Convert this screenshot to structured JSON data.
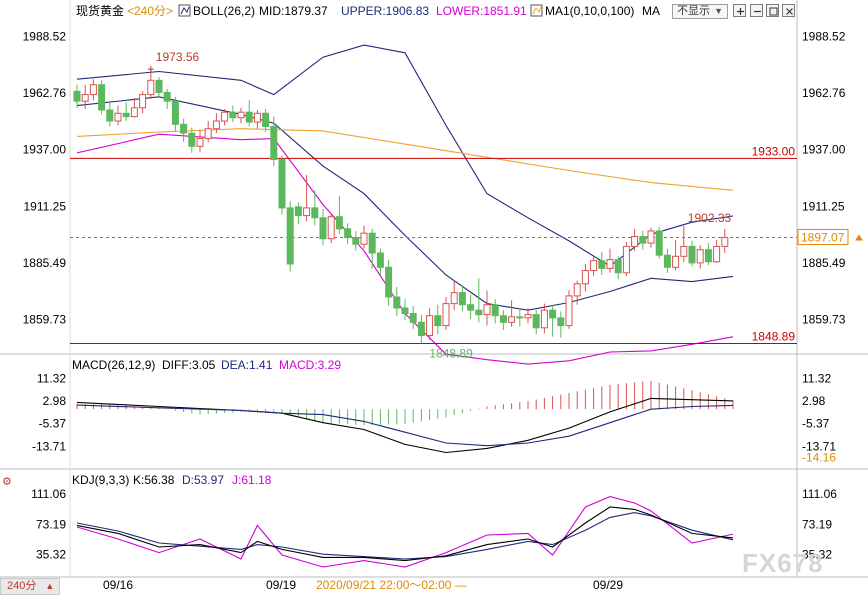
{
  "header": {
    "symbol": "现货黄金",
    "period": "<240分>",
    "boll_label": "BOLL(26,2)",
    "mid": "MID:1879.37",
    "upper": "UPPER:1906.83",
    "lower": "LOWER:1851.91",
    "ma_label": "MA1(0,10,0,100)",
    "ma_name": "MA",
    "toggle_label": "不显示",
    "toggle_caret": "▼"
  },
  "macd_header": {
    "label": "MACD(26,12,9)",
    "diff": "DIFF:3.05",
    "dea": "DEA:1.41",
    "macd": "MACD:3.29"
  },
  "kdj_header": {
    "label": "KDJ(9,3,3)",
    "k": "K:56.38",
    "d": "D:53.97",
    "j": "J:61.18"
  },
  "footer": {
    "period_button": "240分",
    "period_arrow": "▲",
    "dates": [
      "09/16",
      "09/19",
      "09/29"
    ],
    "cursor_range": "2020/09/21 22:00～02:00 —"
  },
  "watermark": "FX678",
  "colors": {
    "up": "#d9534f",
    "down": "#5cb85c",
    "boll": "#1f2a7a",
    "lower": "#d400d4",
    "ma": "#f0a030",
    "hline": "#cc0000",
    "current": "#2a9d8f",
    "diff": "#000000",
    "dea": "#1f2a7a",
    "j": "#d400d4"
  },
  "chart_data": [
    {
      "type": "candlestick",
      "title": "现货黄金 240分",
      "y_ticks_left": [
        "1988.52",
        "1962.76",
        "1937.00",
        "1911.25",
        "1885.49",
        "1859.73"
      ],
      "y_ticks_right": [
        "1988.52",
        "1962.76",
        "1937.00",
        "1911.25",
        "1885.49",
        "1859.73"
      ],
      "ylim": [
        1845,
        1995
      ],
      "x_labels": [
        "09/16",
        "09/19",
        "09/29"
      ],
      "horizontal_lines": [
        1933.0,
        1848.89
      ],
      "horizontal_line_labels": [
        "1933.00",
        "1848.89"
      ],
      "current_price": 1897.07,
      "current_price_label": "1897.07",
      "annotations": {
        "high": "1973.56",
        "low": "1848.89",
        "recent_high": "1902.33"
      },
      "high_value": 1973.56,
      "low_value": 1848.89,
      "recent_high_value": 1902.33,
      "high_index": 9,
      "low_index": 42,
      "recent_high_index": 74,
      "candles": [
        [
          1963.5,
          1959.0,
          1966.5,
          1956.0
        ],
        [
          1959.0,
          1962.0,
          1966.5,
          1955.5
        ],
        [
          1962.0,
          1966.5,
          1969.0,
          1959.5
        ],
        [
          1966.5,
          1955.0,
          1968.5,
          1953.0
        ],
        [
          1955.0,
          1950.0,
          1958.5,
          1947.5
        ],
        [
          1950.0,
          1953.5,
          1957.0,
          1948.0
        ],
        [
          1953.5,
          1952.0,
          1958.5,
          1950.0
        ],
        [
          1952.0,
          1956.0,
          1960.5,
          1951.5
        ],
        [
          1956.0,
          1962.0,
          1963.5,
          1953.5
        ],
        [
          1962.0,
          1968.5,
          1973.56,
          1960.0
        ],
        [
          1968.5,
          1963.0,
          1970.0,
          1961.0
        ],
        [
          1963.0,
          1959.0,
          1964.5,
          1955.5
        ],
        [
          1959.0,
          1948.5,
          1961.0,
          1945.0
        ],
        [
          1948.5,
          1944.5,
          1951.0,
          1940.5
        ],
        [
          1944.5,
          1938.5,
          1947.0,
          1935.5
        ],
        [
          1938.5,
          1942.0,
          1946.0,
          1936.0
        ],
        [
          1942.0,
          1946.5,
          1950.0,
          1940.5
        ],
        [
          1946.5,
          1950.0,
          1953.5,
          1944.5
        ],
        [
          1950.0,
          1954.0,
          1955.5,
          1948.0
        ],
        [
          1954.0,
          1951.5,
          1957.0,
          1949.5
        ],
        [
          1951.5,
          1954.0,
          1956.0,
          1949.0
        ],
        [
          1954.0,
          1949.5,
          1959.5,
          1947.5
        ],
        [
          1949.5,
          1953.5,
          1955.0,
          1946.5
        ],
        [
          1953.5,
          1947.5,
          1955.5,
          1945.0
        ],
        [
          1947.5,
          1932.5,
          1952.0,
          1929.5
        ],
        [
          1932.5,
          1910.5,
          1934.5,
          1907.5
        ],
        [
          1910.5,
          1885.0,
          1913.5,
          1881.5
        ],
        [
          1911.0,
          1907.0,
          1913.0,
          1903.0
        ],
        [
          1907.0,
          1910.5,
          1925.5,
          1904.5
        ],
        [
          1910.5,
          1906.0,
          1918.5,
          1902.5
        ],
        [
          1906.0,
          1896.5,
          1910.0,
          1893.5
        ],
        [
          1896.5,
          1906.5,
          1908.0,
          1894.5
        ],
        [
          1906.5,
          1901.0,
          1916.0,
          1898.5
        ],
        [
          1901.0,
          1897.0,
          1903.5,
          1894.0
        ],
        [
          1897.0,
          1894.0,
          1900.0,
          1891.0
        ],
        [
          1894.0,
          1899.0,
          1902.5,
          1892.0
        ],
        [
          1899.0,
          1890.0,
          1901.0,
          1883.0
        ],
        [
          1890.0,
          1883.5,
          1892.0,
          1880.0
        ],
        [
          1883.5,
          1870.0,
          1887.0,
          1866.0
        ],
        [
          1870.0,
          1865.0,
          1874.5,
          1861.5
        ],
        [
          1865.0,
          1862.5,
          1869.0,
          1859.5
        ],
        [
          1862.5,
          1858.5,
          1866.0,
          1855.5
        ],
        [
          1858.5,
          1852.5,
          1862.0,
          1848.89
        ],
        [
          1852.5,
          1861.5,
          1865.0,
          1850.5
        ],
        [
          1861.5,
          1857.0,
          1866.5,
          1853.0
        ],
        [
          1857.0,
          1867.0,
          1870.0,
          1855.0
        ],
        [
          1867.0,
          1872.0,
          1877.5,
          1864.0
        ],
        [
          1872.0,
          1866.5,
          1875.0,
          1863.5
        ],
        [
          1866.5,
          1864.0,
          1871.0,
          1860.0
        ],
        [
          1864.0,
          1862.0,
          1878.5,
          1858.5
        ],
        [
          1862.0,
          1866.5,
          1873.0,
          1857.0
        ],
        [
          1866.5,
          1861.5,
          1869.0,
          1858.0
        ],
        [
          1861.5,
          1858.5,
          1864.0,
          1855.0
        ],
        [
          1858.5,
          1861.0,
          1868.5,
          1856.5
        ],
        [
          1861.0,
          1860.5,
          1865.0,
          1856.5
        ],
        [
          1860.5,
          1862.0,
          1865.0,
          1858.0
        ],
        [
          1862.0,
          1856.0,
          1864.0,
          1853.0
        ],
        [
          1856.0,
          1864.0,
          1867.0,
          1853.5
        ],
        [
          1864.0,
          1860.5,
          1866.5,
          1852.0
        ],
        [
          1860.5,
          1857.0,
          1863.5,
          1851.5
        ],
        [
          1857.0,
          1870.5,
          1873.0,
          1855.5
        ],
        [
          1870.5,
          1876.0,
          1877.5,
          1866.5
        ],
        [
          1876.0,
          1882.0,
          1885.0,
          1872.5
        ],
        [
          1882.0,
          1886.5,
          1889.0,
          1879.5
        ],
        [
          1886.5,
          1883.0,
          1890.5,
          1880.0
        ],
        [
          1883.0,
          1887.0,
          1892.0,
          1881.0
        ],
        [
          1887.0,
          1881.0,
          1888.5,
          1878.0
        ],
        [
          1881.0,
          1893.0,
          1895.0,
          1879.5
        ],
        [
          1893.0,
          1897.5,
          1901.0,
          1891.0
        ],
        [
          1897.5,
          1894.5,
          1900.0,
          1891.5
        ],
        [
          1894.5,
          1900.0,
          1901.5,
          1892.5
        ],
        [
          1900.0,
          1889.0,
          1902.0,
          1887.5
        ],
        [
          1889.0,
          1883.5,
          1892.0,
          1881.0
        ],
        [
          1883.5,
          1888.5,
          1896.0,
          1882.0
        ],
        [
          1888.5,
          1893.0,
          1902.33,
          1886.0
        ],
        [
          1893.0,
          1885.5,
          1895.5,
          1884.0
        ],
        [
          1885.5,
          1891.5,
          1893.5,
          1883.0
        ],
        [
          1891.5,
          1886.0,
          1894.5,
          1884.5
        ],
        [
          1886.0,
          1893.0,
          1896.0,
          1885.5
        ],
        [
          1893.0,
          1897.07,
          1901.0,
          1890.0
        ]
      ],
      "boll_upper": [
        [
          0,
          1969.0
        ],
        [
          10,
          1972.5
        ],
        [
          20,
          1968.5
        ],
        [
          24,
          1962.0
        ],
        [
          30,
          1979.0
        ],
        [
          35,
          1984.5
        ],
        [
          40,
          1981.0
        ],
        [
          45,
          1948.0
        ],
        [
          50,
          1917.0
        ],
        [
          55,
          1906.0
        ],
        [
          60,
          1895.5
        ],
        [
          65,
          1884.0
        ],
        [
          70,
          1898.5
        ],
        [
          75,
          1904.0
        ],
        [
          80,
          1906.83
        ]
      ],
      "boll_mid": [
        [
          0,
          1957.0
        ],
        [
          10,
          1961.0
        ],
        [
          20,
          1953.0
        ],
        [
          24,
          1949.0
        ],
        [
          30,
          1929.5
        ],
        [
          35,
          1917.0
        ],
        [
          40,
          1898.0
        ],
        [
          45,
          1880.0
        ],
        [
          50,
          1867.0
        ],
        [
          55,
          1864.0
        ],
        [
          60,
          1867.5
        ],
        [
          65,
          1872.5
        ],
        [
          70,
          1878.5
        ],
        [
          75,
          1877.0
        ],
        [
          80,
          1879.37
        ]
      ],
      "boll_lower": [
        [
          0,
          1935.5
        ],
        [
          10,
          1944.0
        ],
        [
          20,
          1941.5
        ],
        [
          24,
          1942.0
        ],
        [
          30,
          1912.0
        ],
        [
          35,
          1891.0
        ],
        [
          40,
          1862.5
        ],
        [
          45,
          1844.0
        ],
        [
          50,
          1841.5
        ],
        [
          55,
          1839.5
        ],
        [
          60,
          1841.0
        ],
        [
          65,
          1845.0
        ],
        [
          70,
          1845.5
        ],
        [
          75,
          1848.5
        ],
        [
          80,
          1851.91
        ]
      ],
      "ma": [
        [
          0,
          1943.0
        ],
        [
          10,
          1945.0
        ],
        [
          20,
          1946.5
        ],
        [
          30,
          1945.5
        ],
        [
          40,
          1939.5
        ],
        [
          50,
          1933.5
        ],
        [
          60,
          1927.5
        ],
        [
          70,
          1922.0
        ],
        [
          80,
          1918.5
        ]
      ]
    },
    {
      "type": "bar",
      "title": "MACD(26,12,9)",
      "y_ticks_left": [
        "11.32",
        "2.98",
        "-5.37",
        "-13.71"
      ],
      "y_ticks_right": [
        "11.32",
        "2.98",
        "-5.37",
        "-13.71"
      ],
      "ylim": [
        -21,
        13
      ],
      "right_marker": "-14.16",
      "macd_hist": [
        [
          0,
          2.0
        ],
        [
          5,
          1.6
        ],
        [
          10,
          0.4
        ],
        [
          15,
          -2.0
        ],
        [
          20,
          -1.0
        ],
        [
          25,
          -1.6
        ],
        [
          30,
          -5.0
        ],
        [
          35,
          -6.0
        ],
        [
          40,
          -5.5
        ],
        [
          45,
          -3.0
        ],
        [
          50,
          1.0
        ],
        [
          55,
          3.0
        ],
        [
          60,
          6.0
        ],
        [
          65,
          9.0
        ],
        [
          70,
          10.5
        ],
        [
          75,
          7.0
        ],
        [
          80,
          3.29
        ]
      ],
      "diff": [
        [
          0,
          2.5
        ],
        [
          10,
          1.0
        ],
        [
          20,
          -0.5
        ],
        [
          25,
          -1.5
        ],
        [
          30,
          -5.0
        ],
        [
          35,
          -7.5
        ],
        [
          40,
          -13.0
        ],
        [
          45,
          -16.0
        ],
        [
          50,
          -14.5
        ],
        [
          55,
          -11.5
        ],
        [
          60,
          -7.0
        ],
        [
          65,
          -1.0
        ],
        [
          70,
          4.0
        ],
        [
          75,
          3.5
        ],
        [
          80,
          3.05
        ]
      ],
      "dea": [
        [
          0,
          1.5
        ],
        [
          10,
          0.5
        ],
        [
          20,
          -0.5
        ],
        [
          25,
          -1.5
        ],
        [
          30,
          -2.0
        ],
        [
          35,
          -4.5
        ],
        [
          40,
          -8.5
        ],
        [
          45,
          -12.5
        ],
        [
          50,
          -13.5
        ],
        [
          55,
          -12.5
        ],
        [
          60,
          -10.0
        ],
        [
          65,
          -5.0
        ],
        [
          70,
          0.0
        ],
        [
          75,
          1.0
        ],
        [
          80,
          1.41
        ]
      ]
    },
    {
      "type": "line",
      "title": "KDJ(9,3,3)",
      "y_ticks_left": [
        "111.06",
        "73.19",
        "35.32"
      ],
      "y_ticks_right": [
        "111.06",
        "73.19",
        "35.32"
      ],
      "ylim": [
        10,
        120
      ],
      "k": [
        [
          0,
          72
        ],
        [
          5,
          62
        ],
        [
          10,
          45
        ],
        [
          15,
          48
        ],
        [
          20,
          38
        ],
        [
          22,
          52
        ],
        [
          25,
          42
        ],
        [
          30,
          32
        ],
        [
          35,
          32
        ],
        [
          40,
          28
        ],
        [
          45,
          34
        ],
        [
          50,
          48
        ],
        [
          55,
          55
        ],
        [
          58,
          45
        ],
        [
          62,
          75
        ],
        [
          65,
          95
        ],
        [
          68,
          92
        ],
        [
          70,
          85
        ],
        [
          75,
          62
        ],
        [
          80,
          56.38
        ]
      ],
      "d": [
        [
          0,
          75
        ],
        [
          5,
          65
        ],
        [
          10,
          50
        ],
        [
          15,
          46
        ],
        [
          20,
          42
        ],
        [
          22,
          48
        ],
        [
          25,
          45
        ],
        [
          30,
          36
        ],
        [
          35,
          33
        ],
        [
          40,
          30
        ],
        [
          45,
          33
        ],
        [
          50,
          42
        ],
        [
          55,
          52
        ],
        [
          58,
          48
        ],
        [
          62,
          66
        ],
        [
          65,
          82
        ],
        [
          68,
          88
        ],
        [
          70,
          84
        ],
        [
          75,
          66
        ],
        [
          80,
          53.97
        ]
      ],
      "j": [
        [
          0,
          70
        ],
        [
          5,
          55
        ],
        [
          10,
          38
        ],
        [
          15,
          55
        ],
        [
          20,
          30
        ],
        [
          22,
          72
        ],
        [
          25,
          35
        ],
        [
          30,
          20
        ],
        [
          35,
          28
        ],
        [
          40,
          20
        ],
        [
          45,
          38
        ],
        [
          50,
          60
        ],
        [
          55,
          62
        ],
        [
          58,
          35
        ],
        [
          62,
          95
        ],
        [
          65,
          108
        ],
        [
          68,
          100
        ],
        [
          70,
          90
        ],
        [
          75,
          50
        ],
        [
          80,
          61.18
        ]
      ]
    }
  ]
}
